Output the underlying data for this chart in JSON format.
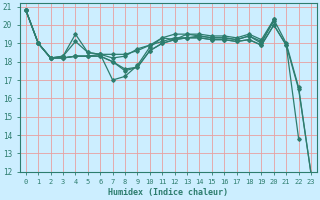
{
  "xlabel": "Humidex (Indice chaleur)",
  "background_color": "#cceeff",
  "grid_color": "#ffaaaa",
  "line_color": "#2d7d6e",
  "xlim": [
    -0.5,
    23.5
  ],
  "ylim": [
    12,
    21.2
  ],
  "yticks": [
    12,
    13,
    14,
    15,
    16,
    17,
    18,
    19,
    20,
    21
  ],
  "xticks": [
    0,
    1,
    2,
    3,
    4,
    5,
    6,
    7,
    8,
    9,
    10,
    11,
    12,
    13,
    14,
    15,
    16,
    17,
    18,
    19,
    20,
    21,
    22,
    23
  ],
  "lines": [
    {
      "x": [
        0,
        1,
        2,
        3,
        4,
        5,
        6,
        7,
        8,
        9,
        10,
        11,
        12,
        13,
        14,
        15,
        16,
        17,
        18,
        19,
        20,
        21,
        22,
        23
      ],
      "y": [
        20.8,
        19.0,
        18.2,
        18.3,
        19.1,
        18.5,
        18.4,
        17.0,
        17.2,
        17.8,
        18.8,
        19.3,
        19.2,
        19.5,
        19.4,
        19.3,
        19.3,
        19.2,
        19.4,
        19.0,
        20.3,
        19.0,
        16.6,
        11.9
      ]
    },
    {
      "x": [
        0,
        1,
        2,
        3,
        4,
        5,
        6,
        7,
        8,
        9,
        10,
        11,
        12,
        13,
        14,
        15,
        16,
        17,
        18,
        19,
        20
      ],
      "y": [
        20.8,
        19.0,
        18.2,
        18.3,
        19.5,
        18.5,
        18.4,
        18.2,
        18.3,
        18.7,
        18.9,
        19.3,
        19.5,
        19.5,
        19.5,
        19.4,
        19.4,
        19.3,
        19.5,
        19.2,
        20.3
      ]
    },
    {
      "x": [
        0,
        1,
        2,
        3,
        4,
        5,
        6,
        7,
        8,
        9,
        10,
        11,
        12,
        13,
        14,
        15,
        16,
        17,
        18,
        19,
        20
      ],
      "y": [
        20.8,
        19.0,
        18.2,
        18.2,
        18.3,
        18.3,
        18.4,
        18.4,
        18.4,
        18.6,
        18.9,
        19.1,
        19.3,
        19.3,
        19.4,
        19.3,
        19.3,
        19.2,
        19.4,
        19.1,
        20.2
      ]
    },
    {
      "x": [
        0,
        1,
        2,
        3,
        4,
        5,
        6,
        7,
        8,
        9,
        10,
        11,
        12,
        13,
        14,
        15,
        16,
        17,
        18,
        19,
        20,
        21,
        22
      ],
      "y": [
        20.8,
        19.0,
        18.2,
        18.2,
        18.3,
        18.3,
        18.3,
        18.0,
        17.6,
        17.7,
        18.6,
        19.0,
        19.2,
        19.3,
        19.3,
        19.2,
        19.2,
        19.1,
        19.2,
        18.9,
        20.0,
        18.9,
        13.8
      ]
    },
    {
      "x": [
        0,
        1,
        2,
        3,
        4,
        5,
        6,
        7,
        8,
        9,
        10,
        11,
        12,
        13,
        14,
        15,
        16,
        17,
        18,
        19,
        20,
        21,
        22,
        23
      ],
      "y": [
        20.8,
        19.0,
        18.2,
        18.2,
        18.3,
        18.3,
        18.3,
        18.0,
        17.5,
        17.7,
        18.6,
        19.0,
        19.2,
        19.3,
        19.3,
        19.2,
        19.2,
        19.1,
        19.2,
        18.9,
        20.0,
        18.9,
        16.5,
        11.9
      ]
    }
  ]
}
